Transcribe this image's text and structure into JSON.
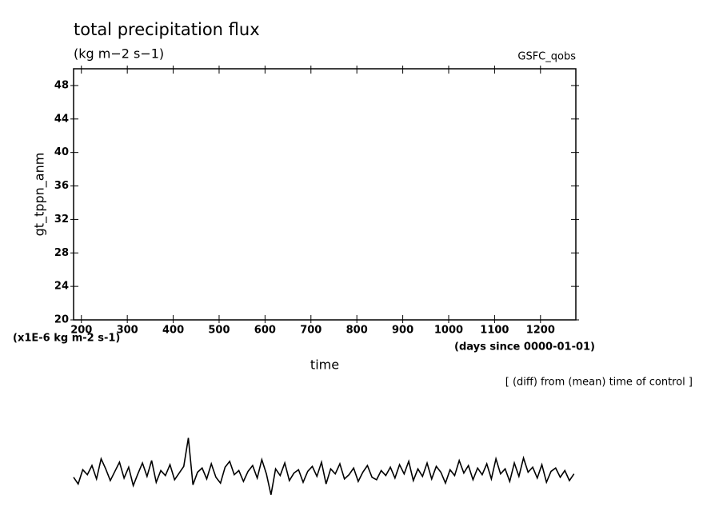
{
  "chart_data": {
    "type": "line",
    "title": "total precipitation flux",
    "subtitle": "(kg m−2 s−1)",
    "label_right": "GSFC_qobs",
    "y_label": "gt_tppn_anm",
    "y_unit_label": "(x1E-6 kg m-2 s-1)",
    "x_label": "time",
    "x_unit_label": "(days since 0000-01-01)",
    "annotation": "[ (diff) from (mean) time of control ]",
    "color": "#000000",
    "xlim": [
      183,
      1277
    ],
    "ylim": [
      20,
      50
    ],
    "xticks": [
      200,
      300,
      400,
      500,
      600,
      700,
      800,
      900,
      1000,
      1100,
      1200
    ],
    "yticks": [
      20,
      24,
      28,
      32,
      36,
      40,
      44,
      48
    ],
    "x": [
      183,
      193,
      203,
      213,
      223,
      233,
      243,
      253,
      263,
      273,
      283,
      293,
      303,
      313,
      323,
      333,
      343,
      353,
      363,
      373,
      383,
      393,
      403,
      413,
      423,
      433,
      443,
      453,
      463,
      473,
      483,
      493,
      503,
      513,
      523,
      533,
      543,
      553,
      563,
      573,
      583,
      593,
      603,
      613,
      623,
      633,
      643,
      653,
      663,
      673,
      683,
      693,
      703,
      713,
      723,
      733,
      743,
      753,
      763,
      773,
      783,
      793,
      803,
      813,
      823,
      833,
      843,
      853,
      863,
      873,
      883,
      893,
      903,
      913,
      923,
      933,
      943,
      953,
      963,
      973,
      983,
      993,
      1003,
      1013,
      1023,
      1033,
      1043,
      1053,
      1063,
      1073,
      1083,
      1093,
      1103,
      1113,
      1123,
      1133,
      1143,
      1153,
      1163,
      1173,
      1183,
      1193,
      1203,
      1213,
      1223,
      1233,
      1243,
      1253,
      1263,
      1273
    ],
    "values": [
      1.2,
      0.4,
      2.1,
      1.5,
      2.6,
      1.0,
      3.4,
      2.2,
      0.8,
      1.9,
      3.0,
      1.1,
      2.4,
      0.2,
      1.6,
      2.9,
      1.3,
      3.2,
      0.6,
      2.0,
      1.4,
      2.7,
      0.9,
      1.7,
      2.5,
      5.9,
      0.3,
      1.8,
      2.3,
      1.0,
      2.8,
      1.2,
      0.5,
      2.4,
      3.1,
      1.5,
      2.0,
      0.7,
      1.9,
      2.6,
      1.1,
      3.3,
      1.6,
      -0.9,
      2.2,
      1.4,
      2.9,
      0.8,
      1.7,
      2.1,
      0.6,
      1.9,
      2.5,
      1.3,
      3.0,
      0.4,
      2.2,
      1.6,
      2.8,
      1.0,
      1.5,
      2.3,
      0.7,
      1.8,
      2.6,
      1.2,
      0.9,
      2.0,
      1.4,
      2.4,
      1.1,
      2.7,
      1.6,
      3.1,
      0.8,
      2.2,
      1.3,
      2.9,
      1.0,
      2.5,
      1.8,
      0.5,
      2.1,
      1.4,
      3.2,
      1.7,
      2.6,
      0.9,
      2.3,
      1.5,
      2.8,
      1.0,
      3.4,
      1.6,
      2.2,
      0.7,
      2.9,
      1.3,
      3.5,
      1.8,
      2.4,
      1.1,
      2.7,
      0.6,
      1.9,
      2.3,
      1.2,
      2.0,
      0.8,
      1.6
    ]
  }
}
